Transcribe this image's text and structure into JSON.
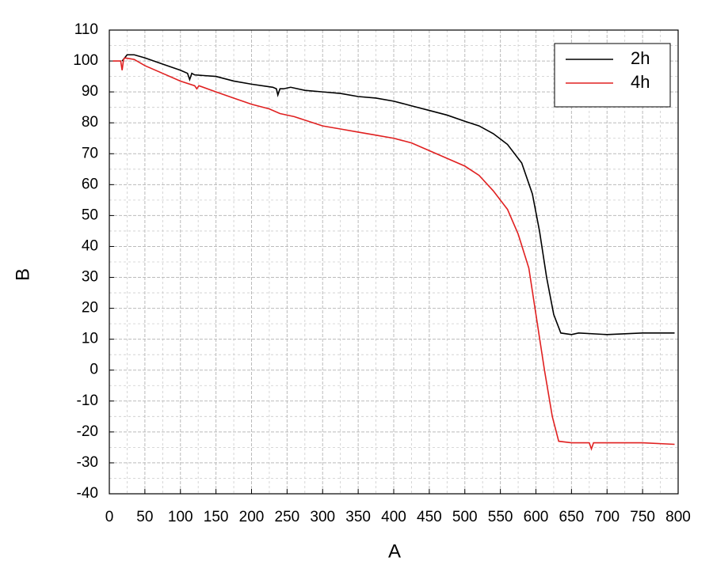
{
  "chart_data": {
    "type": "line",
    "x_label": "A",
    "y_label": "B",
    "xlim": [
      0,
      800
    ],
    "xticks": [
      0,
      50,
      100,
      150,
      200,
      250,
      300,
      350,
      400,
      450,
      500,
      550,
      600,
      650,
      700,
      750,
      800
    ],
    "ylim": [
      -40,
      110
    ],
    "yticks": [
      -40,
      -30,
      -20,
      -10,
      0,
      10,
      20,
      30,
      40,
      50,
      60,
      70,
      80,
      90,
      100,
      110
    ],
    "grid": true,
    "legend": "upper right",
    "series": [
      {
        "name": "2h",
        "color": "#000000",
        "x": [
          18,
          25,
          35,
          50,
          75,
          100,
          110,
          113,
          116,
          120,
          150,
          175,
          200,
          230,
          235,
          237,
          240,
          245,
          255,
          275,
          300,
          325,
          350,
          375,
          400,
          425,
          450,
          475,
          500,
          520,
          540,
          560,
          580,
          595,
          605,
          615,
          625,
          635,
          650,
          660,
          700,
          750,
          795
        ],
        "values": [
          100,
          102,
          102,
          101,
          99,
          97,
          96,
          94,
          96,
          95.5,
          95,
          93.5,
          92.5,
          91.5,
          91,
          89,
          91,
          91,
          91.5,
          90.5,
          90,
          89.5,
          88.5,
          88,
          87,
          85.5,
          84,
          82.5,
          80.5,
          79,
          76.5,
          73,
          67,
          57,
          45,
          30,
          18,
          12,
          11.5,
          12,
          11.5,
          12,
          12
        ]
      },
      {
        "name": "4h",
        "color": "#e02020",
        "x": [
          5,
          16,
          18,
          20,
          22,
          35,
          50,
          75,
          100,
          120,
          123,
          126,
          150,
          175,
          200,
          225,
          240,
          260,
          280,
          300,
          325,
          350,
          375,
          400,
          425,
          450,
          475,
          500,
          520,
          540,
          560,
          575,
          590,
          600,
          612,
          623,
          632,
          650,
          675,
          678,
          681,
          685,
          750,
          795
        ],
        "values": [
          100,
          100,
          97,
          100.5,
          101,
          100.5,
          98.5,
          96,
          93.5,
          92,
          91,
          92,
          90,
          88,
          86,
          84.5,
          83,
          82,
          80.5,
          79,
          78,
          77,
          76,
          75,
          73.5,
          71,
          68.5,
          66,
          63,
          58,
          52,
          44,
          33,
          18,
          0,
          -15,
          -23,
          -23.5,
          -23.5,
          -25.5,
          -23.5,
          -23.5,
          -23.5,
          -24
        ]
      }
    ]
  }
}
